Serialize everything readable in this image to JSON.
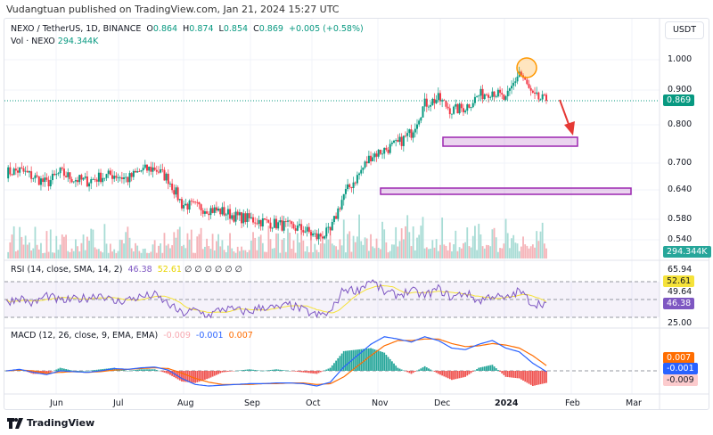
{
  "publisher": "Vudangtuan published on TradingView.com, Jan 21, 2024 15:27 UTC",
  "header": {
    "symbol": "NEXO / TetherUS, 1D, BINANCE",
    "o_label": "O",
    "o": "0.864",
    "h_label": "H",
    "h": "0.874",
    "l_label": "L",
    "l": "0.854",
    "c_label": "C",
    "c": "0.869",
    "change": "+0.005 (+0.58%)",
    "vol_label": "Vol · NEXO",
    "vol": "294.344K"
  },
  "currency_button": "USDT",
  "colors": {
    "up": "#089981",
    "down": "#f23645",
    "rsi": "#7e57c2",
    "rsi_ma": "#f5e23a",
    "macd": "#2962ff",
    "signal": "#ff6d00",
    "box": "#9c27b0",
    "arrow": "#e53935"
  },
  "chart_data": [
    {
      "type": "candlestick",
      "title": "NEXO / TetherUS 1D",
      "scale": "log",
      "price_ticks": [
        "1.000",
        "0.900",
        "0.800",
        "0.700",
        "0.640",
        "0.580",
        "0.540"
      ],
      "last_price": "0.869",
      "last_volume": "294.344K",
      "x_ticks": [
        "Jun",
        "Jul",
        "Aug",
        "Sep",
        "Oct",
        "Nov",
        "Dec",
        "2024",
        "Feb",
        "Mar"
      ],
      "weekly_close": [
        0.68,
        0.685,
        0.67,
        0.655,
        0.68,
        0.665,
        0.66,
        0.67,
        0.675,
        0.665,
        0.685,
        0.69,
        0.665,
        0.61,
        0.605,
        0.6,
        0.595,
        0.585,
        0.58,
        0.575,
        0.57,
        0.565,
        0.56,
        0.545,
        0.555,
        0.63,
        0.67,
        0.72,
        0.735,
        0.75,
        0.78,
        0.86,
        0.875,
        0.84,
        0.85,
        0.885,
        0.9,
        0.87,
        0.96,
        0.88,
        0.869
      ],
      "annotations": [
        "support box 0.745-0.765",
        "support box 0.63-0.64",
        "circle at high ~0.98",
        "arrow pointing down"
      ]
    },
    {
      "type": "line",
      "title": "RSI",
      "label": "RSI (14, close, SMA, 14, 2)",
      "rsi": "46.38",
      "rsi_ma": "52.61",
      "extras": [
        "∅",
        "∅",
        "∅",
        "∅",
        "∅",
        "∅"
      ],
      "y_ticks": [
        "65.94",
        "49.64",
        "25.00"
      ],
      "bands": [
        70,
        50,
        30
      ],
      "values": [
        47,
        52,
        45,
        55,
        48,
        50,
        52,
        56,
        47,
        50,
        53,
        55,
        45,
        34,
        38,
        32,
        40,
        38,
        36,
        42,
        40,
        44,
        38,
        32,
        35,
        62,
        60,
        72,
        58,
        55,
        60,
        54,
        62,
        52,
        58,
        48,
        55,
        50,
        60,
        45,
        46.38
      ]
    },
    {
      "type": "line",
      "title": "MACD",
      "label": "MACD (12, 26, close, 9, EMA, EMA)",
      "hist": "-0.009",
      "macd": "-0.001",
      "signal": "0.007",
      "macd_values": [
        0,
        0.002,
        -0.002,
        -0.005,
        0,
        -0.001,
        -0.002,
        0,
        0.003,
        0.002,
        0.004,
        0.005,
        0.001,
        -0.01,
        -0.018,
        -0.02,
        -0.019,
        -0.018,
        -0.017,
        -0.017,
        -0.016,
        -0.016,
        -0.017,
        -0.02,
        -0.015,
        0.005,
        0.02,
        0.035,
        0.045,
        0.042,
        0.038,
        0.045,
        0.04,
        0.03,
        0.028,
        0.035,
        0.04,
        0.03,
        0.025,
        0.01,
        -0.001
      ],
      "signal_values": [
        0,
        0.001,
        0,
        -0.003,
        -0.002,
        -0.001,
        -0.002,
        -0.001,
        0.001,
        0.002,
        0.003,
        0.004,
        0.003,
        -0.003,
        -0.01,
        -0.015,
        -0.018,
        -0.018,
        -0.018,
        -0.017,
        -0.017,
        -0.016,
        -0.016,
        -0.018,
        -0.017,
        -0.008,
        0.006,
        0.02,
        0.033,
        0.04,
        0.04,
        0.042,
        0.042,
        0.036,
        0.032,
        0.033,
        0.036,
        0.034,
        0.03,
        0.02,
        0.007
      ]
    }
  ]
}
